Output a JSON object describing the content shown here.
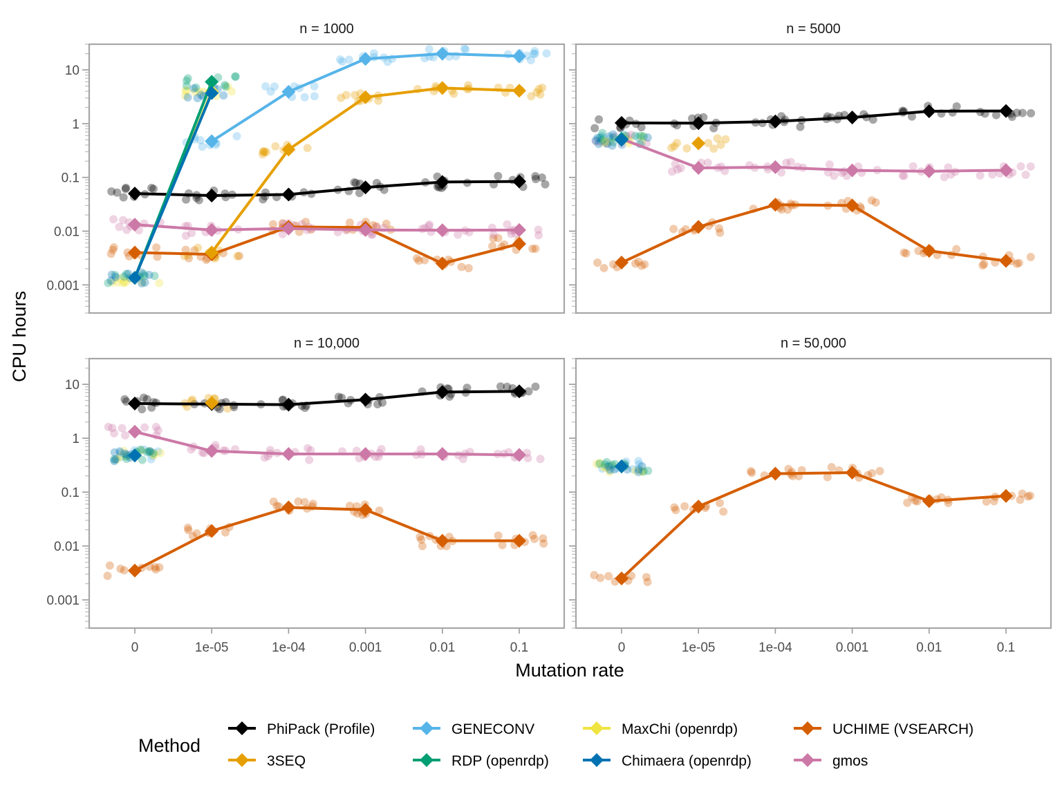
{
  "chart_data": {
    "type": "line",
    "xlabel": "Mutation rate",
    "ylabel": "CPU hours",
    "x_categories": [
      "0",
      "1e-05",
      "1e-04",
      "0.001",
      "0.01",
      "0.1"
    ],
    "y_scale": "log10",
    "y_ticks": [
      0.001,
      0.01,
      0.1,
      1,
      10
    ],
    "y_tick_labels": [
      "0.001",
      "0.01",
      "0.1",
      "1",
      "10"
    ],
    "ylim": [
      0.0003,
      30
    ],
    "grid": false,
    "legend": {
      "title": "Method",
      "placement": "bottom",
      "entries": [
        {
          "name": "PhiPack (Profile)",
          "color": "#000000"
        },
        {
          "name": "3SEQ",
          "color": "#E69F00"
        },
        {
          "name": "GENECONV",
          "color": "#56B4E9"
        },
        {
          "name": "RDP (openrdp)",
          "color": "#009E73"
        },
        {
          "name": "MaxChi (openrdp)",
          "color": "#F0E442"
        },
        {
          "name": "Chimaera (openrdp)",
          "color": "#0072B2"
        },
        {
          "name": "UCHIME (VSEARCH)",
          "color": "#D55E00"
        },
        {
          "name": "gmos",
          "color": "#CC79A7"
        }
      ]
    },
    "panels": [
      {
        "title": "n = 1000",
        "series": [
          {
            "name": "PhiPack (Profile)",
            "values": [
              0.05,
              0.046,
              0.048,
              0.065,
              0.082,
              0.084
            ]
          },
          {
            "name": "3SEQ",
            "values": [
              null,
              0.004,
              0.33,
              3.1,
              4.6,
              4.1
            ]
          },
          {
            "name": "GENECONV",
            "values": [
              null,
              0.47,
              3.9,
              16,
              20,
              18
            ]
          },
          {
            "name": "RDP (openrdp)",
            "values": [
              0.00135,
              6,
              null,
              null,
              null,
              null
            ]
          },
          {
            "name": "MaxChi (openrdp)",
            "values": [
              0.00135,
              4,
              null,
              null,
              null,
              null
            ]
          },
          {
            "name": "Chimaera (openrdp)",
            "values": [
              0.00135,
              3.7,
              null,
              null,
              null,
              null
            ]
          },
          {
            "name": "UCHIME (VSEARCH)",
            "values": [
              0.004,
              0.0037,
              0.012,
              0.0117,
              0.0025,
              0.0058
            ]
          },
          {
            "name": "gmos",
            "values": [
              0.0132,
              0.0105,
              0.0112,
              0.0105,
              0.0104,
              0.0105
            ]
          }
        ]
      },
      {
        "title": "n = 5000",
        "series": [
          {
            "name": "PhiPack (Profile)",
            "values": [
              1.03,
              1.02,
              1.1,
              1.3,
              1.7,
              1.72
            ]
          },
          {
            "name": "3SEQ",
            "values": [
              null,
              0.43,
              null,
              null,
              null,
              null
            ]
          },
          {
            "name": "GENECONV",
            "values": [
              0.5,
              null,
              null,
              null,
              null,
              null
            ]
          },
          {
            "name": "RDP (openrdp)",
            "values": [
              0.52,
              null,
              null,
              null,
              null,
              null
            ]
          },
          {
            "name": "MaxChi (openrdp)",
            "values": [
              0.5,
              null,
              null,
              null,
              null,
              null
            ]
          },
          {
            "name": "Chimaera (openrdp)",
            "values": [
              0.5,
              null,
              null,
              null,
              null,
              null
            ]
          },
          {
            "name": "UCHIME (VSEARCH)",
            "values": [
              0.0026,
              0.012,
              0.031,
              0.03,
              0.0043,
              0.0028
            ]
          },
          {
            "name": "gmos",
            "values": [
              0.52,
              0.15,
              0.155,
              0.135,
              0.13,
              0.136
            ]
          }
        ]
      },
      {
        "title": "n = 10,000",
        "series": [
          {
            "name": "PhiPack (Profile)",
            "values": [
              4.4,
              4.3,
              4.2,
              5.2,
              7.2,
              7.4
            ]
          },
          {
            "name": "3SEQ",
            "values": [
              null,
              4.5,
              null,
              null,
              null,
              null
            ]
          },
          {
            "name": "GENECONV",
            "values": [
              0.48,
              null,
              null,
              null,
              null,
              null
            ]
          },
          {
            "name": "RDP (openrdp)",
            "values": [
              0.48,
              null,
              null,
              null,
              null,
              null
            ]
          },
          {
            "name": "MaxChi (openrdp)",
            "values": [
              0.48,
              null,
              null,
              null,
              null,
              null
            ]
          },
          {
            "name": "Chimaera (openrdp)",
            "values": [
              0.48,
              null,
              null,
              null,
              null,
              null
            ]
          },
          {
            "name": "UCHIME (VSEARCH)",
            "values": [
              0.0035,
              0.019,
              0.052,
              0.047,
              0.0125,
              0.0125
            ]
          },
          {
            "name": "gmos",
            "values": [
              1.32,
              0.58,
              0.51,
              0.51,
              0.51,
              0.49
            ]
          }
        ]
      },
      {
        "title": "n = 50,000",
        "series": [
          {
            "name": "PhiPack (Profile)",
            "values": [
              null,
              null,
              null,
              null,
              null,
              null
            ]
          },
          {
            "name": "3SEQ",
            "values": [
              null,
              null,
              null,
              null,
              null,
              null
            ]
          },
          {
            "name": "GENECONV",
            "values": [
              0.3,
              null,
              null,
              null,
              null,
              null
            ]
          },
          {
            "name": "RDP (openrdp)",
            "values": [
              0.3,
              null,
              null,
              null,
              null,
              null
            ]
          },
          {
            "name": "MaxChi (openrdp)",
            "values": [
              0.3,
              null,
              null,
              null,
              null,
              null
            ]
          },
          {
            "name": "Chimaera (openrdp)",
            "values": [
              0.3,
              null,
              null,
              null,
              null,
              null
            ]
          },
          {
            "name": "UCHIME (VSEARCH)",
            "values": [
              0.0025,
              0.054,
              0.22,
              0.23,
              0.068,
              0.085
            ]
          },
          {
            "name": "gmos",
            "values": [
              null,
              null,
              null,
              null,
              null,
              null
            ]
          }
        ]
      }
    ]
  }
}
